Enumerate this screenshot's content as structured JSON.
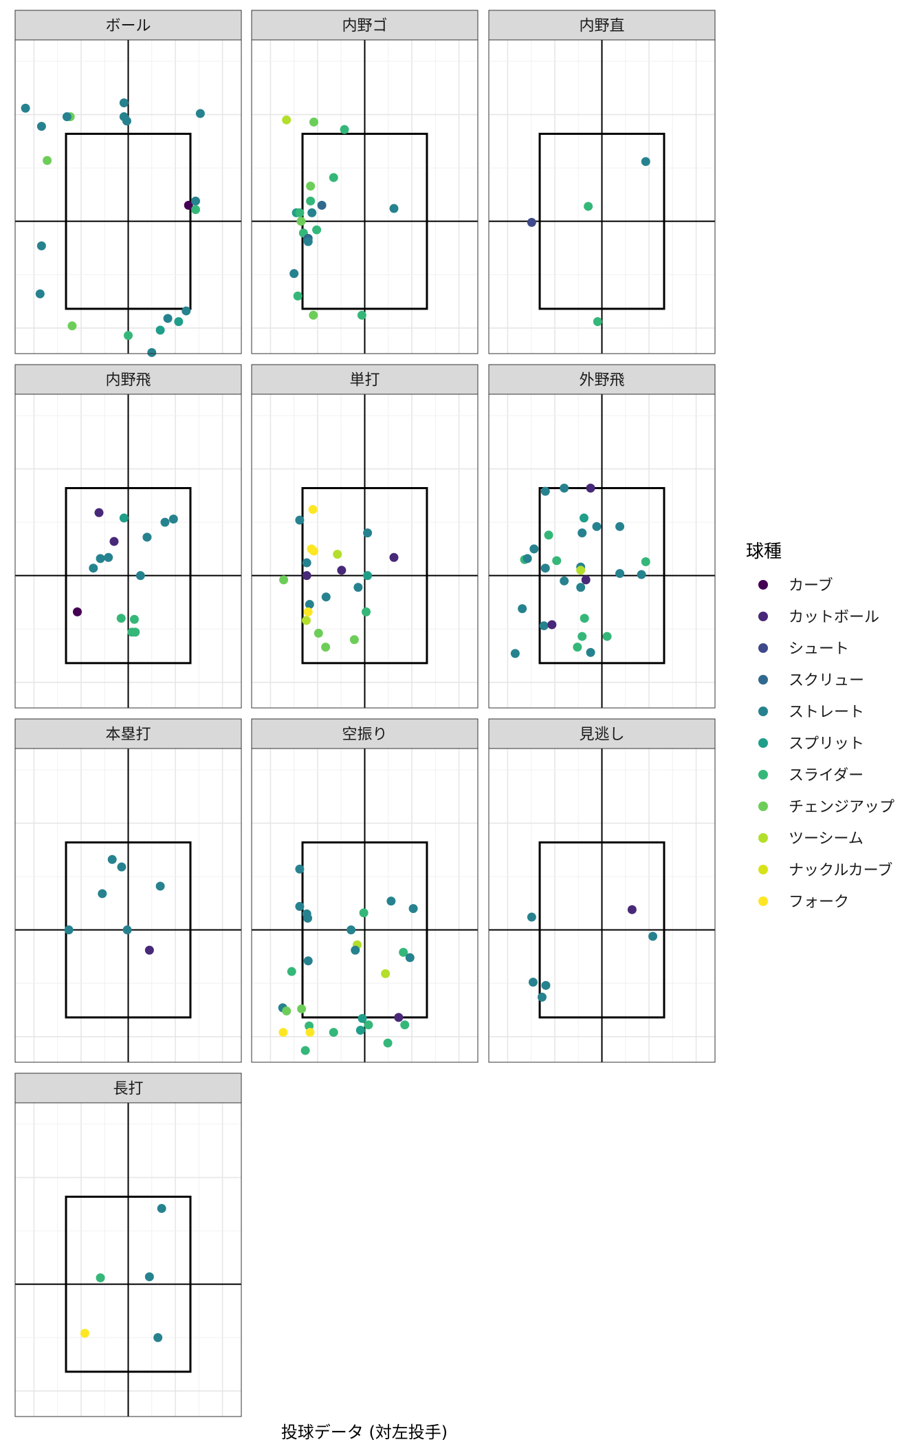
{
  "chart_data": {
    "type": "scatter",
    "xlabel": "投球データ (対左投手)",
    "ylabel": "",
    "legend": {
      "title": "球種",
      "position": "right"
    },
    "xlim": [
      -2.4,
      2.4
    ],
    "ylim": [
      -1.24,
      1.7
    ],
    "strike_zone": {
      "x": [
        -1.32,
        1.32
      ],
      "y": [
        -0.82,
        0.82
      ]
    },
    "reference_lines": {
      "x": 0,
      "y": 0
    },
    "grid": true,
    "series": [
      {
        "name": "カーブ",
        "color": "#440154"
      },
      {
        "name": "カットボール",
        "color": "#482878"
      },
      {
        "name": "シュート",
        "color": "#3E4A89"
      },
      {
        "name": "スクリュー",
        "color": "#31688E"
      },
      {
        "name": "ストレート",
        "color": "#26828E"
      },
      {
        "name": "スプリット",
        "color": "#1F9E89"
      },
      {
        "name": "スライダー",
        "color": "#35B779"
      },
      {
        "name": "チェンジアップ",
        "color": "#6DCD59"
      },
      {
        "name": "ツーシーム",
        "color": "#B4DE2C"
      },
      {
        "name": "ナックルカーブ",
        "color": "#D8E219"
      },
      {
        "name": "フォーク",
        "color": "#FDE725"
      }
    ],
    "panels": [
      {
        "title": "ボール",
        "points": [
          {
            "x": -2.18,
            "y": 1.06,
            "s": 4
          },
          {
            "x": -1.84,
            "y": 0.89,
            "s": 4
          },
          {
            "x": -1.23,
            "y": 0.98,
            "s": 7
          },
          {
            "x": -1.3,
            "y": 0.98,
            "s": 4
          },
          {
            "x": -0.09,
            "y": 1.11,
            "s": 4
          },
          {
            "x": -0.09,
            "y": 0.98,
            "s": 4
          },
          {
            "x": -0.03,
            "y": 0.94,
            "s": 4
          },
          {
            "x": 1.53,
            "y": 1.01,
            "s": 4
          },
          {
            "x": -1.72,
            "y": 0.57,
            "s": 7
          },
          {
            "x": 1.28,
            "y": 0.15,
            "s": 0
          },
          {
            "x": 1.43,
            "y": 0.19,
            "s": 4
          },
          {
            "x": 1.43,
            "y": 0.11,
            "s": 6
          },
          {
            "x": -1.84,
            "y": -0.23,
            "s": 4
          },
          {
            "x": -1.87,
            "y": -0.68,
            "s": 4
          },
          {
            "x": -1.19,
            "y": -0.98,
            "s": 7
          },
          {
            "x": 0.0,
            "y": -1.07,
            "s": 6
          },
          {
            "x": 0.68,
            "y": -1.02,
            "s": 5
          },
          {
            "x": 0.84,
            "y": -0.91,
            "s": 4
          },
          {
            "x": 1.07,
            "y": -0.94,
            "s": 5
          },
          {
            "x": 1.23,
            "y": -0.84,
            "s": 4
          },
          {
            "x": 0.5,
            "y": -1.23,
            "s": 4
          }
        ]
      },
      {
        "title": "内野ゴ",
        "points": [
          {
            "x": -1.66,
            "y": 0.95,
            "s": 8
          },
          {
            "x": -1.08,
            "y": 0.93,
            "s": 7
          },
          {
            "x": -0.43,
            "y": 0.86,
            "s": 6
          },
          {
            "x": -0.66,
            "y": 0.41,
            "s": 6
          },
          {
            "x": -1.15,
            "y": 0.33,
            "s": 7
          },
          {
            "x": -1.15,
            "y": 0.19,
            "s": 6
          },
          {
            "x": -0.91,
            "y": 0.15,
            "s": 3
          },
          {
            "x": -1.45,
            "y": 0.08,
            "s": 5
          },
          {
            "x": -1.38,
            "y": 0.08,
            "s": 6
          },
          {
            "x": -1.12,
            "y": 0.08,
            "s": 4
          },
          {
            "x": 0.62,
            "y": 0.12,
            "s": 4
          },
          {
            "x": -1.35,
            "y": 0.0,
            "s": 7
          },
          {
            "x": -1.02,
            "y": -0.08,
            "s": 6
          },
          {
            "x": -1.3,
            "y": -0.11,
            "s": 6
          },
          {
            "x": -1.2,
            "y": -0.16,
            "s": 3
          },
          {
            "x": -1.2,
            "y": -0.19,
            "s": 4
          },
          {
            "x": -1.5,
            "y": -0.49,
            "s": 4
          },
          {
            "x": -1.42,
            "y": -0.7,
            "s": 6
          },
          {
            "x": -1.09,
            "y": -0.88,
            "s": 7
          },
          {
            "x": -0.06,
            "y": -0.88,
            "s": 6
          }
        ]
      },
      {
        "title": "内野直",
        "points": [
          {
            "x": 0.93,
            "y": 0.56,
            "s": 4
          },
          {
            "x": -0.29,
            "y": 0.14,
            "s": 6
          },
          {
            "x": -1.49,
            "y": -0.01,
            "s": 2
          },
          {
            "x": -0.09,
            "y": -0.94,
            "s": 6
          }
        ]
      },
      {
        "title": "内野飛",
        "points": [
          {
            "x": -0.62,
            "y": 0.59,
            "s": 1
          },
          {
            "x": -0.09,
            "y": 0.54,
            "s": 5
          },
          {
            "x": 0.78,
            "y": 0.5,
            "s": 4
          },
          {
            "x": 0.96,
            "y": 0.53,
            "s": 4
          },
          {
            "x": 0.4,
            "y": 0.36,
            "s": 4
          },
          {
            "x": -0.3,
            "y": 0.32,
            "s": 1
          },
          {
            "x": -0.59,
            "y": 0.16,
            "s": 4
          },
          {
            "x": -0.42,
            "y": 0.17,
            "s": 4
          },
          {
            "x": -0.74,
            "y": 0.07,
            "s": 4
          },
          {
            "x": 0.26,
            "y": 0.0,
            "s": 4
          },
          {
            "x": -1.08,
            "y": -0.34,
            "s": 0
          },
          {
            "x": -0.15,
            "y": -0.4,
            "s": 6
          },
          {
            "x": 0.13,
            "y": -0.41,
            "s": 6
          },
          {
            "x": 0.08,
            "y": -0.53,
            "s": 6
          },
          {
            "x": 0.15,
            "y": -0.53,
            "s": 6
          }
        ]
      },
      {
        "title": "単打",
        "points": [
          {
            "x": -1.1,
            "y": 0.62,
            "s": 10
          },
          {
            "x": -1.38,
            "y": 0.52,
            "s": 4
          },
          {
            "x": 0.06,
            "y": 0.4,
            "s": 4
          },
          {
            "x": -1.13,
            "y": 0.25,
            "s": 10
          },
          {
            "x": -1.08,
            "y": 0.23,
            "s": 10
          },
          {
            "x": -0.58,
            "y": 0.2,
            "s": 8
          },
          {
            "x": 0.62,
            "y": 0.17,
            "s": 1
          },
          {
            "x": -1.23,
            "y": 0.12,
            "s": 4
          },
          {
            "x": -0.49,
            "y": 0.05,
            "s": 1
          },
          {
            "x": -1.23,
            "y": 0.0,
            "s": 1
          },
          {
            "x": 0.06,
            "y": 0.0,
            "s": 5
          },
          {
            "x": -1.72,
            "y": -0.04,
            "s": 7
          },
          {
            "x": -0.14,
            "y": -0.11,
            "s": 4
          },
          {
            "x": -0.82,
            "y": -0.2,
            "s": 4
          },
          {
            "x": -1.17,
            "y": -0.27,
            "s": 4
          },
          {
            "x": -1.2,
            "y": -0.34,
            "s": 10
          },
          {
            "x": 0.03,
            "y": -0.34,
            "s": 6
          },
          {
            "x": -1.24,
            "y": -0.42,
            "s": 8
          },
          {
            "x": -0.98,
            "y": -0.54,
            "s": 7
          },
          {
            "x": -0.22,
            "y": -0.6,
            "s": 7
          },
          {
            "x": -0.83,
            "y": -0.67,
            "s": 7
          }
        ]
      },
      {
        "title": "外野飛",
        "points": [
          {
            "x": -1.2,
            "y": 0.79,
            "s": 4
          },
          {
            "x": -0.8,
            "y": 0.82,
            "s": 4
          },
          {
            "x": -0.24,
            "y": 0.82,
            "s": 1
          },
          {
            "x": -0.38,
            "y": 0.54,
            "s": 5
          },
          {
            "x": -0.42,
            "y": 0.4,
            "s": 4
          },
          {
            "x": -1.13,
            "y": 0.38,
            "s": 6
          },
          {
            "x": -0.11,
            "y": 0.46,
            "s": 4
          },
          {
            "x": 0.38,
            "y": 0.46,
            "s": 4
          },
          {
            "x": -1.44,
            "y": 0.25,
            "s": 4
          },
          {
            "x": -1.64,
            "y": 0.15,
            "s": 6
          },
          {
            "x": -1.58,
            "y": 0.16,
            "s": 4
          },
          {
            "x": -0.96,
            "y": 0.14,
            "s": 6
          },
          {
            "x": -1.2,
            "y": 0.07,
            "s": 4
          },
          {
            "x": -0.45,
            "y": 0.08,
            "s": 4
          },
          {
            "x": -0.45,
            "y": 0.05,
            "s": 8
          },
          {
            "x": 0.38,
            "y": 0.02,
            "s": 4
          },
          {
            "x": 0.84,
            "y": 0.01,
            "s": 4
          },
          {
            "x": 0.93,
            "y": 0.13,
            "s": 6
          },
          {
            "x": -0.8,
            "y": -0.05,
            "s": 4
          },
          {
            "x": -0.34,
            "y": -0.04,
            "s": 1
          },
          {
            "x": -0.45,
            "y": -0.11,
            "s": 4
          },
          {
            "x": -1.69,
            "y": -0.31,
            "s": 4
          },
          {
            "x": -1.23,
            "y": -0.47,
            "s": 4
          },
          {
            "x": -1.06,
            "y": -0.46,
            "s": 1
          },
          {
            "x": -0.37,
            "y": -0.4,
            "s": 6
          },
          {
            "x": -0.42,
            "y": -0.57,
            "s": 6
          },
          {
            "x": 0.11,
            "y": -0.57,
            "s": 6
          },
          {
            "x": -0.52,
            "y": -0.67,
            "s": 6
          },
          {
            "x": -0.24,
            "y": -0.72,
            "s": 4
          },
          {
            "x": -1.84,
            "y": -0.73,
            "s": 4
          }
        ]
      },
      {
        "title": "本塁打",
        "points": [
          {
            "x": -0.34,
            "y": 0.66,
            "s": 4
          },
          {
            "x": -0.14,
            "y": 0.59,
            "s": 4
          },
          {
            "x": 0.68,
            "y": 0.41,
            "s": 4
          },
          {
            "x": -0.55,
            "y": 0.34,
            "s": 4
          },
          {
            "x": -1.26,
            "y": 0.0,
            "s": 4
          },
          {
            "x": -0.02,
            "y": 0.0,
            "s": 4
          },
          {
            "x": 0.45,
            "y": -0.19,
            "s": 1
          }
        ]
      },
      {
        "title": "空振り",
        "points": [
          {
            "x": -1.38,
            "y": 0.57,
            "s": 4
          },
          {
            "x": -1.38,
            "y": 0.22,
            "s": 4
          },
          {
            "x": -1.23,
            "y": 0.15,
            "s": 4
          },
          {
            "x": -1.21,
            "y": 0.11,
            "s": 4
          },
          {
            "x": 0.56,
            "y": 0.27,
            "s": 4
          },
          {
            "x": 1.03,
            "y": 0.2,
            "s": 4
          },
          {
            "x": -0.02,
            "y": 0.16,
            "s": 6
          },
          {
            "x": -0.29,
            "y": 0.0,
            "s": 4
          },
          {
            "x": -0.16,
            "y": -0.14,
            "s": 8
          },
          {
            "x": -0.2,
            "y": -0.19,
            "s": 4
          },
          {
            "x": 0.82,
            "y": -0.21,
            "s": 6
          },
          {
            "x": 0.96,
            "y": -0.26,
            "s": 4
          },
          {
            "x": -1.2,
            "y": -0.29,
            "s": 4
          },
          {
            "x": 0.44,
            "y": -0.41,
            "s": 8
          },
          {
            "x": -1.55,
            "y": -0.39,
            "s": 6
          },
          {
            "x": -1.74,
            "y": -0.73,
            "s": 4
          },
          {
            "x": -1.66,
            "y": -0.76,
            "s": 7
          },
          {
            "x": -1.34,
            "y": -0.74,
            "s": 7
          },
          {
            "x": -0.05,
            "y": -0.83,
            "s": 5
          },
          {
            "x": 0.72,
            "y": -0.82,
            "s": 1
          },
          {
            "x": 0.08,
            "y": -0.89,
            "s": 6
          },
          {
            "x": 0.85,
            "y": -0.89,
            "s": 6
          },
          {
            "x": -1.18,
            "y": -0.9,
            "s": 6
          },
          {
            "x": -1.73,
            "y": -0.96,
            "s": 10
          },
          {
            "x": -1.16,
            "y": -0.96,
            "s": 10
          },
          {
            "x": -0.66,
            "y": -0.96,
            "s": 6
          },
          {
            "x": -0.09,
            "y": -0.94,
            "s": 5
          },
          {
            "x": 0.49,
            "y": -1.06,
            "s": 6
          },
          {
            "x": -1.26,
            "y": -1.13,
            "s": 6
          }
        ]
      },
      {
        "title": "見逃し",
        "points": [
          {
            "x": 0.64,
            "y": 0.19,
            "s": 1
          },
          {
            "x": -1.49,
            "y": 0.12,
            "s": 4
          },
          {
            "x": 1.08,
            "y": -0.06,
            "s": 4
          },
          {
            "x": -1.46,
            "y": -0.49,
            "s": 4
          },
          {
            "x": -1.19,
            "y": -0.52,
            "s": 4
          },
          {
            "x": -1.27,
            "y": -0.63,
            "s": 4
          }
        ]
      },
      {
        "title": "長打",
        "points": [
          {
            "x": 0.71,
            "y": 0.71,
            "s": 4
          },
          {
            "x": -0.59,
            "y": 0.06,
            "s": 6
          },
          {
            "x": 0.45,
            "y": 0.07,
            "s": 4
          },
          {
            "x": -0.92,
            "y": -0.46,
            "s": 10
          },
          {
            "x": 0.63,
            "y": -0.5,
            "s": 4
          }
        ]
      }
    ]
  }
}
